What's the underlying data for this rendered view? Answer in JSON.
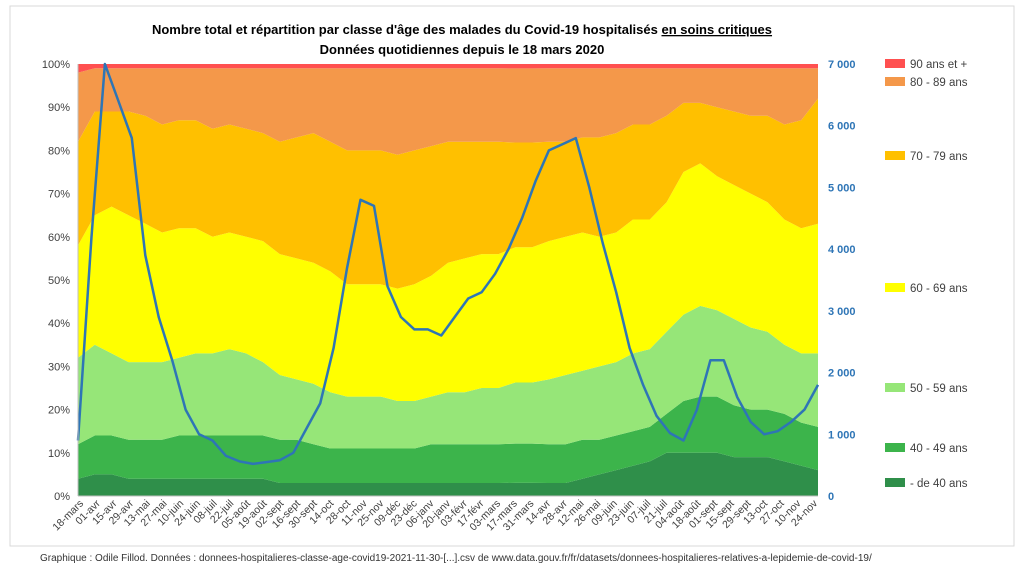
{
  "chart_data": {
    "type": "area",
    "title_line1_prefix": "Nombre total et répartition  par classe d'âge des malades du Covid-19 hospitalisés ",
    "title_line1_underlined": "en soins critiques",
    "title_line2": "Données quotidiennes  depuis le 18 mars 2020",
    "y_left": {
      "ticks": [
        "0%",
        "10%",
        "20%",
        "30%",
        "40%",
        "50%",
        "60%",
        "70%",
        "80%",
        "90%",
        "100%"
      ],
      "range": [
        0,
        100
      ]
    },
    "y_right": {
      "ticks": [
        "0",
        "1 000",
        "2 000",
        "3 000",
        "4 000",
        "5 000",
        "6 000",
        "7 000"
      ],
      "range": [
        0,
        7000
      ]
    },
    "x_labels": [
      "18-mars",
      "01-avr",
      "15-avr",
      "29-avr",
      "13-mai",
      "27-mai",
      "10-juin",
      "24-juin",
      "08-juil",
      "22-juil",
      "05-août",
      "19-août",
      "02-sept",
      "16-sept",
      "30-sept",
      "14-oct",
      "28-oct",
      "11-nov",
      "25-nov",
      "09-déc",
      "23-déc",
      "06-janv",
      "20-janv",
      "03-févr",
      "17-févr",
      "03-mars",
      "17-mars",
      "31-mars",
      "14-avr",
      "28-avr",
      "12-mai",
      "26-mai",
      "09-juin",
      "23-juin",
      "07-juil",
      "21-juil",
      "04-août",
      "18-août",
      "01-sept",
      "15-sept",
      "29-sept",
      "13-oct",
      "27-oct",
      "10-nov",
      "24-nov"
    ],
    "series": [
      {
        "name": "- de 40 ans",
        "color": "#2f8f4a",
        "values": [
          4,
          5,
          5,
          4,
          4,
          4,
          4,
          4,
          4,
          4,
          4,
          4,
          3,
          3,
          3,
          3,
          3,
          3,
          3,
          3,
          3,
          3,
          3,
          3,
          3,
          3,
          3,
          3,
          3,
          3,
          4,
          5,
          6,
          7,
          8,
          10,
          10,
          10,
          10,
          9,
          9,
          9,
          8,
          7,
          6
        ]
      },
      {
        "name": "40 - 49 ans",
        "color": "#3cb44b",
        "values": [
          8,
          9,
          9,
          9,
          9,
          9,
          10,
          10,
          10,
          10,
          10,
          10,
          10,
          10,
          9,
          8,
          8,
          8,
          8,
          8,
          8,
          9,
          9,
          9,
          9,
          9,
          9,
          9,
          9,
          9,
          9,
          8,
          8,
          8,
          8,
          9,
          12,
          13,
          13,
          12,
          11,
          11,
          11,
          10,
          10
        ]
      },
      {
        "name": "50 - 59 ans",
        "color": "#96e678",
        "values": [
          20,
          21,
          19,
          18,
          18,
          18,
          18,
          19,
          19,
          20,
          19,
          17,
          15,
          14,
          14,
          13,
          12,
          12,
          12,
          11,
          11,
          11,
          12,
          12,
          13,
          13,
          14,
          14,
          15,
          16,
          16,
          17,
          17,
          18,
          18,
          19,
          20,
          21,
          20,
          20,
          19,
          18,
          16,
          16,
          17
        ]
      },
      {
        "name": "60 - 69 ans",
        "color": "#ffff00",
        "values": [
          26,
          30,
          34,
          34,
          32,
          30,
          30,
          29,
          27,
          27,
          27,
          28,
          28,
          28,
          28,
          28,
          26,
          26,
          26,
          26,
          27,
          28,
          30,
          31,
          31,
          31,
          31,
          31,
          32,
          32,
          32,
          30,
          30,
          31,
          30,
          30,
          33,
          33,
          31,
          31,
          31,
          30,
          29,
          29,
          30
        ]
      },
      {
        "name": "70 - 79 ans",
        "color": "#ffc000",
        "values": [
          24,
          24,
          22,
          24,
          25,
          25,
          25,
          25,
          25,
          25,
          25,
          25,
          26,
          28,
          30,
          30,
          31,
          31,
          31,
          31,
          31,
          30,
          28,
          27,
          26,
          26,
          24,
          24,
          23,
          22,
          22,
          23,
          23,
          22,
          22,
          20,
          16,
          14,
          16,
          17,
          18,
          20,
          22,
          25,
          29
        ]
      },
      {
        "name": "80 - 89 ans",
        "color": "#f4984a",
        "values": [
          16,
          10,
          10,
          10,
          11,
          13,
          12,
          12,
          14,
          13,
          14,
          15,
          17,
          16,
          15,
          17,
          19,
          19,
          19,
          20,
          19,
          18,
          17,
          17,
          17,
          17,
          17,
          17,
          17,
          17,
          16,
          16,
          15,
          13,
          13,
          11,
          8,
          8,
          9,
          10,
          11,
          11,
          13,
          12,
          7
        ]
      },
      {
        "name": "90 ans et +",
        "color": "#ff5050",
        "values": [
          2,
          1,
          1,
          1,
          1,
          1,
          1,
          1,
          1,
          1,
          1,
          1,
          1,
          1,
          1,
          1,
          1,
          1,
          1,
          1,
          1,
          1,
          1,
          1,
          1,
          1,
          1,
          1,
          1,
          1,
          1,
          1,
          1,
          1,
          1,
          1,
          1,
          1,
          1,
          1,
          1,
          1,
          1,
          1,
          1
        ]
      }
    ],
    "total": {
      "name": "Total hospitalisés en soins critiques",
      "color": "#2e75b6",
      "values": [
        900,
        4200,
        7000,
        6400,
        5800,
        3900,
        2900,
        2200,
        1400,
        1000,
        900,
        650,
        560,
        520,
        550,
        580,
        700,
        1100,
        1500,
        2400,
        3700,
        4800,
        4700,
        3400,
        2900,
        2700,
        2700,
        2600,
        2900,
        3200,
        3300,
        3600,
        4000,
        4500,
        5100,
        5600,
        5700,
        5800,
        5000,
        4100,
        3300,
        2400,
        1800,
        1300,
        1020,
        900,
        1400,
        2200,
        2200,
        1600,
        1200,
        1000,
        1050,
        1200,
        1400,
        1800
      ]
    },
    "legend_position": "right"
  },
  "footer": "Graphique : Odile Fillod. Données : donnees-hospitalieres-classe-age-covid19-2021-11-30-[...].csv de www.data.gouv.fr/fr/datasets/donnees-hospitalieres-relatives-a-lepidemie-de-covid-19/"
}
